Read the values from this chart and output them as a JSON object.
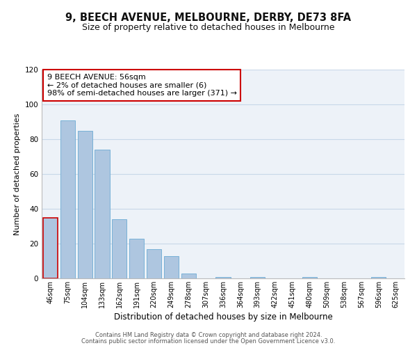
{
  "title1": "9, BEECH AVENUE, MELBOURNE, DERBY, DE73 8FA",
  "title2": "Size of property relative to detached houses in Melbourne",
  "xlabel": "Distribution of detached houses by size in Melbourne",
  "ylabel": "Number of detached properties",
  "bin_labels": [
    "46sqm",
    "75sqm",
    "104sqm",
    "133sqm",
    "162sqm",
    "191sqm",
    "220sqm",
    "249sqm",
    "278sqm",
    "307sqm",
    "336sqm",
    "364sqm",
    "393sqm",
    "422sqm",
    "451sqm",
    "480sqm",
    "509sqm",
    "538sqm",
    "567sqm",
    "596sqm",
    "625sqm"
  ],
  "bar_heights": [
    35,
    91,
    85,
    74,
    34,
    23,
    17,
    13,
    3,
    0,
    1,
    0,
    1,
    0,
    0,
    1,
    0,
    0,
    0,
    1,
    0
  ],
  "bar_color": "#aec6e0",
  "bar_edge_color": "#6aaad4",
  "highlight_bar_index": 0,
  "highlight_bar_edge_color": "#cc0000",
  "annotation_box_text": "9 BEECH AVENUE: 56sqm\n← 2% of detached houses are smaller (6)\n98% of semi-detached houses are larger (371) →",
  "annotation_box_edge_color": "#cc0000",
  "annotation_box_facecolor": "#ffffff",
  "ylim": [
    0,
    120
  ],
  "yticks": [
    0,
    20,
    40,
    60,
    80,
    100,
    120
  ],
  "grid_color": "#c8d8e8",
  "bg_color": "#edf2f8",
  "footer1": "Contains HM Land Registry data © Crown copyright and database right 2024.",
  "footer2": "Contains public sector information licensed under the Open Government Licence v3.0.",
  "title1_fontsize": 10.5,
  "title2_fontsize": 9,
  "xlabel_fontsize": 8.5,
  "ylabel_fontsize": 8,
  "annotation_fontsize": 8,
  "footer_fontsize": 6,
  "tick_fontsize": 7,
  "ytick_fontsize": 7.5
}
